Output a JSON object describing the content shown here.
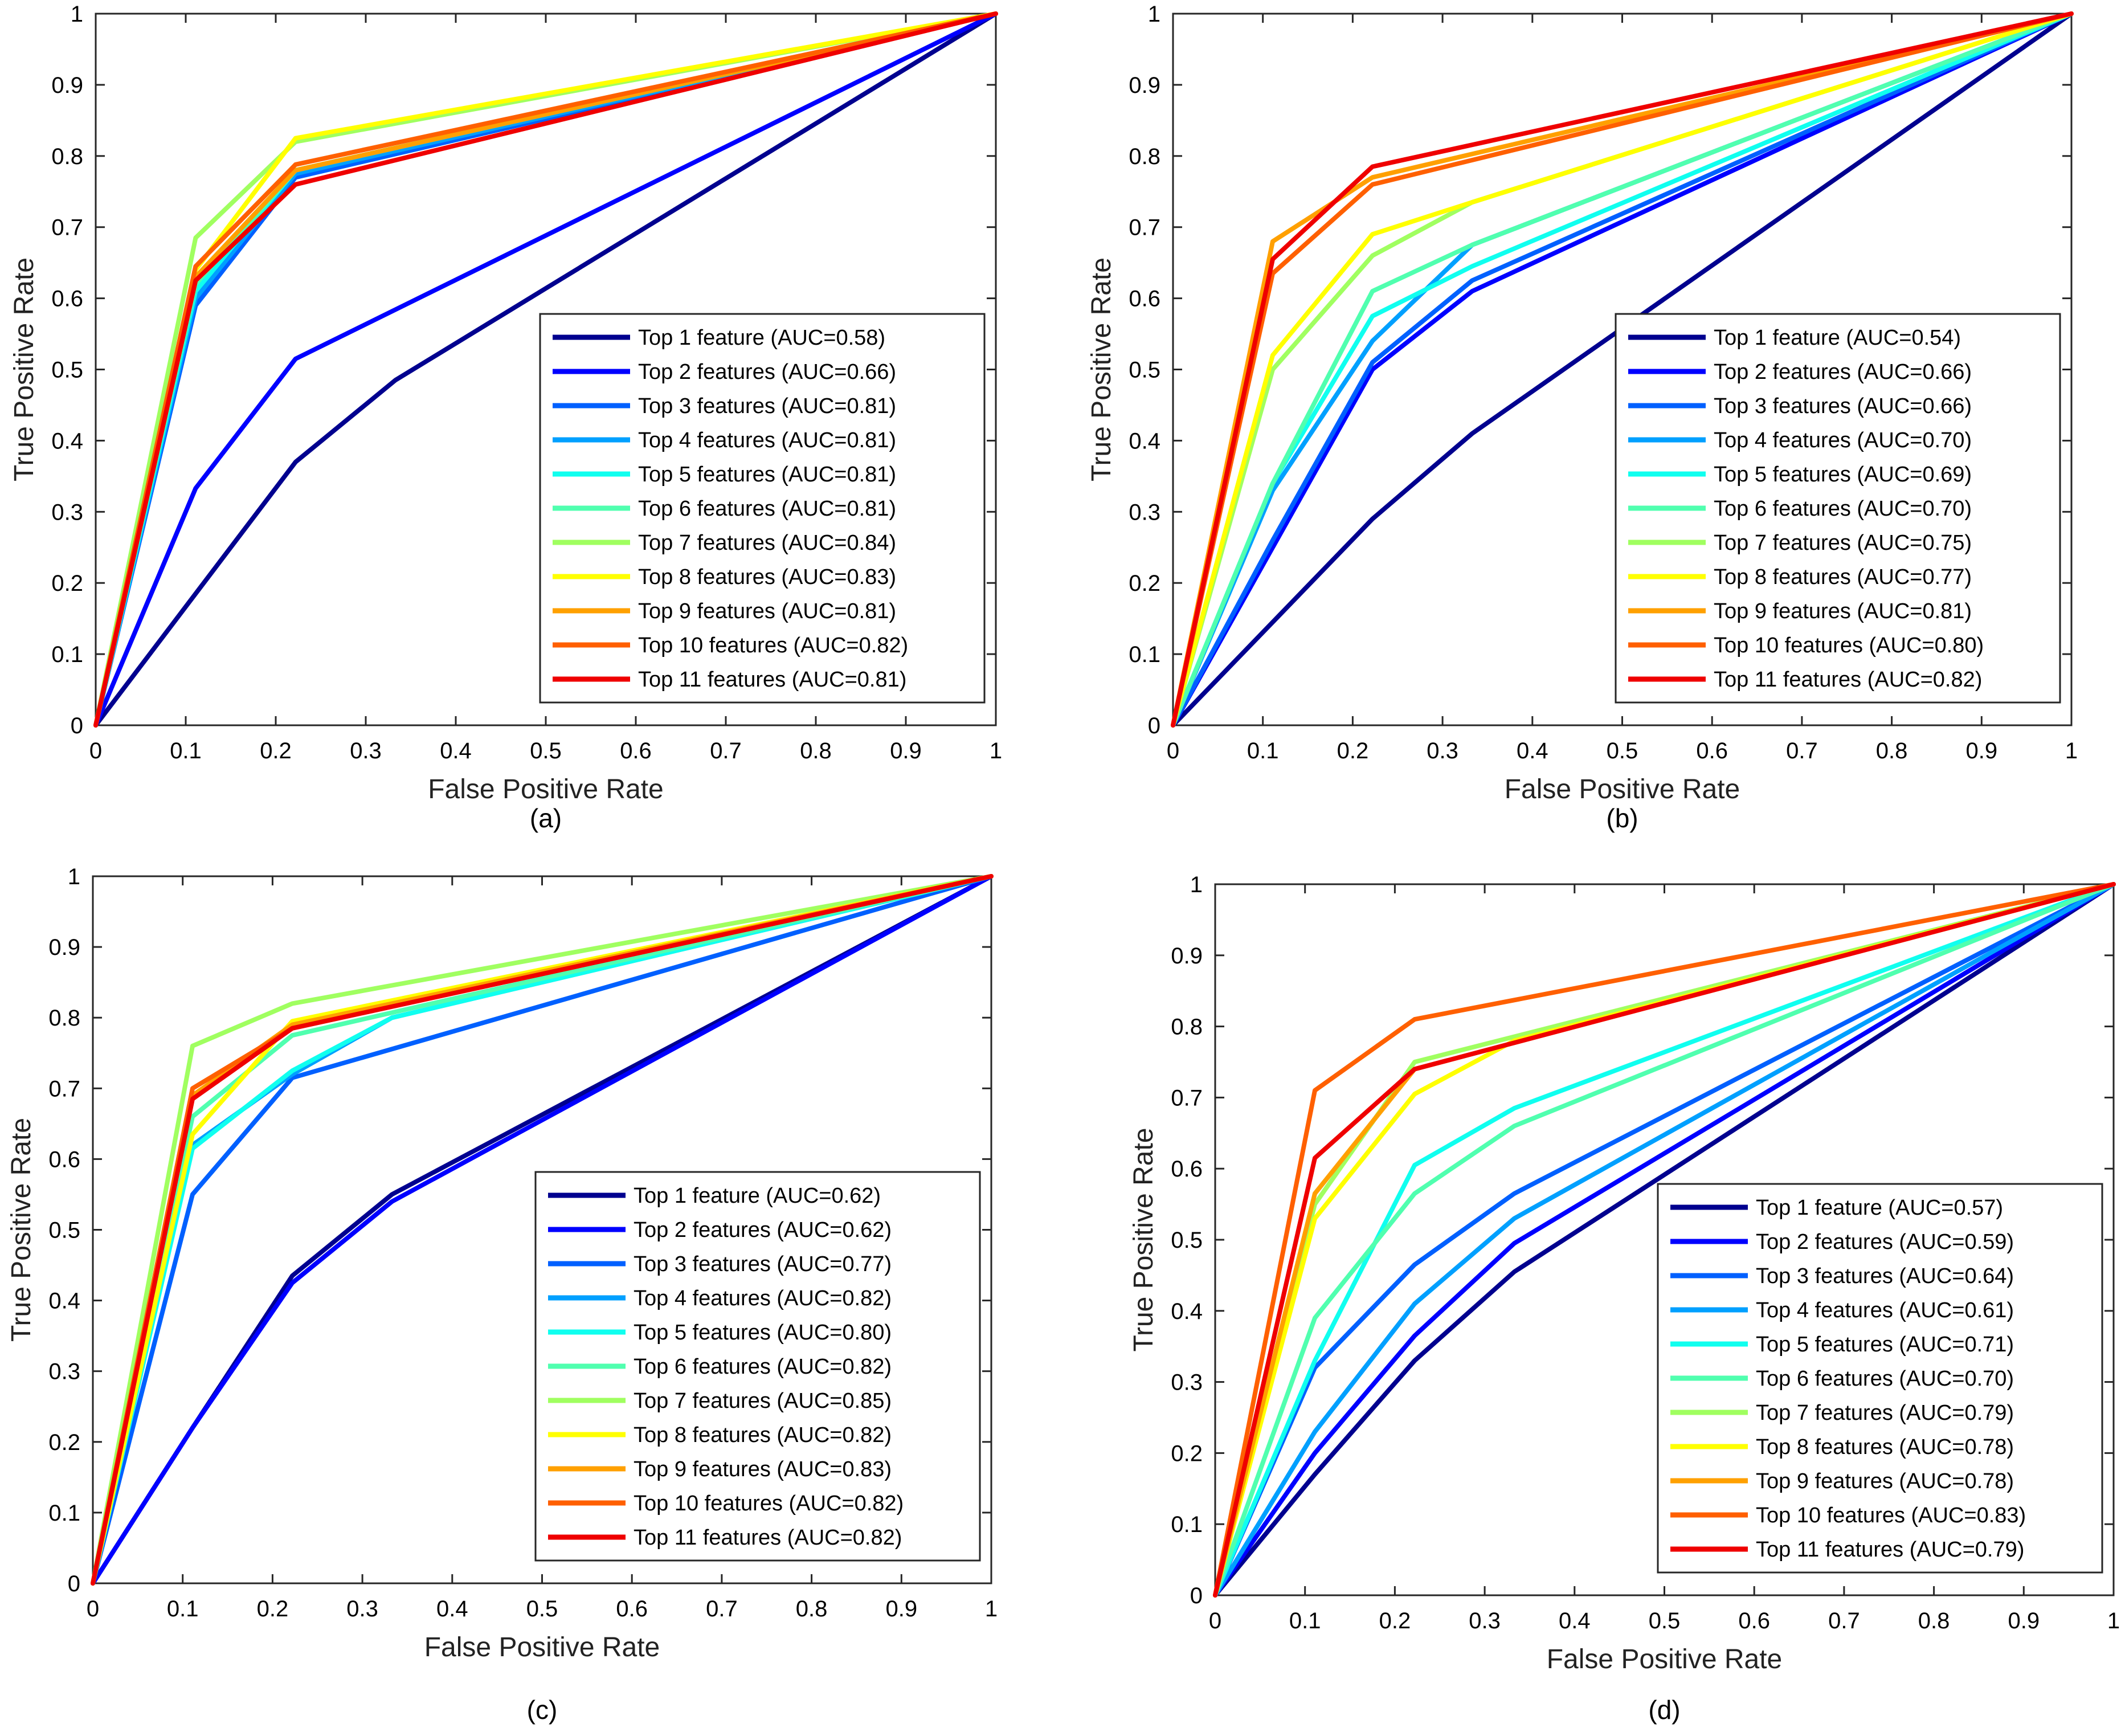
{
  "chart_data": [
    {
      "type": "line",
      "panel_label": "(a)",
      "xlabel": "False Positive Rate",
      "ylabel": "True Positive Rate",
      "xlim": [
        0,
        1
      ],
      "ylim": [
        0,
        1
      ],
      "xticks": [
        "0",
        "0.1",
        "0.2",
        "0.3",
        "0.4",
        "0.5",
        "0.6",
        "0.7",
        "0.8",
        "0.9",
        "1"
      ],
      "yticks": [
        "0",
        "0.1",
        "0.2",
        "0.3",
        "0.4",
        "0.5",
        "0.6",
        "0.7",
        "0.8",
        "0.9",
        "1"
      ],
      "legend_position": "lower-right",
      "series": [
        {
          "name": "Top 1 feature (AUC=0.58)",
          "color": "#00008f",
          "x": [
            0,
            0.222,
            0.333,
            1
          ],
          "y": [
            0,
            0.37,
            0.485,
            1
          ]
        },
        {
          "name": "Top 2 features (AUC=0.66)",
          "color": "#0000ff",
          "x": [
            0,
            0.111,
            0.222,
            1
          ],
          "y": [
            0,
            0.333,
            0.515,
            1
          ]
        },
        {
          "name": "Top 3 features (AUC=0.81)",
          "color": "#0060ff",
          "x": [
            0,
            0.111,
            0.222,
            1
          ],
          "y": [
            0,
            0.59,
            0.77,
            1
          ]
        },
        {
          "name": "Top 4 features (AUC=0.81)",
          "color": "#00a0ff",
          "x": [
            0,
            0.111,
            0.222,
            1
          ],
          "y": [
            0,
            0.6,
            0.775,
            1
          ]
        },
        {
          "name": "Top 5 features (AUC=0.81)",
          "color": "#10ffef",
          "x": [
            0,
            0.111,
            0.222,
            1
          ],
          "y": [
            0,
            0.61,
            0.78,
            1
          ]
        },
        {
          "name": "Top 6 features (AUC=0.81)",
          "color": "#50ffaf",
          "x": [
            0,
            0.111,
            0.222,
            1
          ],
          "y": [
            0,
            0.62,
            0.78,
            1
          ]
        },
        {
          "name": "Top 7 features (AUC=0.84)",
          "color": "#a0ff60",
          "x": [
            0,
            0.111,
            0.222,
            1
          ],
          "y": [
            0,
            0.685,
            0.82,
            1
          ]
        },
        {
          "name": "Top 8 features (AUC=0.83)",
          "color": "#ffff00",
          "x": [
            0,
            0.111,
            0.222,
            1
          ],
          "y": [
            0,
            0.64,
            0.825,
            1
          ]
        },
        {
          "name": "Top 9 features (AUC=0.81)",
          "color": "#ffa000",
          "x": [
            0,
            0.111,
            0.222,
            1
          ],
          "y": [
            0,
            0.63,
            0.78,
            1
          ]
        },
        {
          "name": "Top 10 features (AUC=0.82)",
          "color": "#ff6000",
          "x": [
            0,
            0.111,
            0.222,
            1
          ],
          "y": [
            0,
            0.645,
            0.788,
            1
          ]
        },
        {
          "name": "Top 11 features (AUC=0.81)",
          "color": "#ef0000",
          "x": [
            0,
            0.111,
            0.222,
            1
          ],
          "y": [
            0,
            0.625,
            0.76,
            1
          ]
        }
      ]
    },
    {
      "type": "line",
      "panel_label": "(b)",
      "xlabel": "False Positive Rate",
      "ylabel": "True Positive Rate",
      "xlim": [
        0,
        1
      ],
      "ylim": [
        0,
        1
      ],
      "xticks": [
        "0",
        "0.1",
        "0.2",
        "0.3",
        "0.4",
        "0.5",
        "0.6",
        "0.7",
        "0.8",
        "0.9",
        "1"
      ],
      "yticks": [
        "0",
        "0.1",
        "0.2",
        "0.3",
        "0.4",
        "0.5",
        "0.6",
        "0.7",
        "0.8",
        "0.9",
        "1"
      ],
      "legend_position": "lower-right",
      "series": [
        {
          "name": "Top 1 feature (AUC=0.54)",
          "color": "#00008f",
          "x": [
            0,
            0.222,
            0.333,
            1
          ],
          "y": [
            0,
            0.29,
            0.41,
            1
          ]
        },
        {
          "name": "Top 2 features (AUC=0.66)",
          "color": "#0000ff",
          "x": [
            0,
            0.111,
            0.222,
            0.333,
            1
          ],
          "y": [
            0,
            0.25,
            0.5,
            0.61,
            1
          ]
        },
        {
          "name": "Top 3 features (AUC=0.66)",
          "color": "#0060ff",
          "x": [
            0,
            0.111,
            0.222,
            0.333,
            1
          ],
          "y": [
            0,
            0.26,
            0.51,
            0.625,
            1
          ]
        },
        {
          "name": "Top 4 features (AUC=0.70)",
          "color": "#00a0ff",
          "x": [
            0,
            0.111,
            0.222,
            0.333,
            1
          ],
          "y": [
            0,
            0.33,
            0.54,
            0.675,
            1
          ]
        },
        {
          "name": "Top 5 features (AUC=0.69)",
          "color": "#10ffef",
          "x": [
            0,
            0.111,
            0.222,
            0.333,
            1
          ],
          "y": [
            0,
            0.34,
            0.575,
            0.645,
            1
          ]
        },
        {
          "name": "Top 6 features (AUC=0.70)",
          "color": "#50ffaf",
          "x": [
            0,
            0.111,
            0.222,
            0.333,
            1
          ],
          "y": [
            0,
            0.34,
            0.61,
            0.675,
            1
          ]
        },
        {
          "name": "Top 7 features (AUC=0.75)",
          "color": "#a0ff60",
          "x": [
            0,
            0.111,
            0.222,
            0.333,
            1
          ],
          "y": [
            0,
            0.5,
            0.66,
            0.735,
            1
          ]
        },
        {
          "name": "Top 8 features (AUC=0.77)",
          "color": "#ffff00",
          "x": [
            0,
            0.111,
            0.222,
            0.333,
            1
          ],
          "y": [
            0,
            0.52,
            0.69,
            0.735,
            1
          ]
        },
        {
          "name": "Top 9 features (AUC=0.81)",
          "color": "#ffa000",
          "x": [
            0,
            0.111,
            0.222,
            1
          ],
          "y": [
            0,
            0.68,
            0.77,
            1
          ]
        },
        {
          "name": "Top 10 features (AUC=0.80)",
          "color": "#ff6000",
          "x": [
            0,
            0.111,
            0.222,
            1
          ],
          "y": [
            0,
            0.635,
            0.76,
            1
          ]
        },
        {
          "name": "Top 11 features (AUC=0.82)",
          "color": "#ef0000",
          "x": [
            0,
            0.111,
            0.222,
            1
          ],
          "y": [
            0,
            0.655,
            0.785,
            1
          ]
        }
      ]
    },
    {
      "type": "line",
      "panel_label": "(c)",
      "xlabel": "False Positive Rate",
      "ylabel": "True Positive Rate",
      "xlim": [
        0,
        1
      ],
      "ylim": [
        0,
        1
      ],
      "xticks": [
        "0",
        "0.1",
        "0.2",
        "0.3",
        "0.4",
        "0.5",
        "0.6",
        "0.7",
        "0.8",
        "0.9",
        "1"
      ],
      "yticks": [
        "0",
        "0.1",
        "0.2",
        "0.3",
        "0.4",
        "0.5",
        "0.6",
        "0.7",
        "0.8",
        "0.9",
        "1"
      ],
      "legend_position": "lower-right",
      "series": [
        {
          "name": "Top 1 feature (AUC=0.62)",
          "color": "#00008f",
          "x": [
            0,
            0.111,
            0.222,
            0.333,
            1
          ],
          "y": [
            0,
            0.22,
            0.435,
            0.55,
            1
          ]
        },
        {
          "name": "Top 2 features (AUC=0.62)",
          "color": "#0000ff",
          "x": [
            0,
            0.111,
            0.222,
            0.333,
            1
          ],
          "y": [
            0,
            0.22,
            0.425,
            0.54,
            1
          ]
        },
        {
          "name": "Top 3 features (AUC=0.77)",
          "color": "#0060ff",
          "x": [
            0,
            0.111,
            0.222,
            1
          ],
          "y": [
            0,
            0.55,
            0.715,
            1
          ]
        },
        {
          "name": "Top 4 features (AUC=0.82)",
          "color": "#00a0ff",
          "x": [
            0,
            0.111,
            0.222,
            0.333,
            1
          ],
          "y": [
            0,
            0.62,
            0.72,
            0.8,
            1
          ]
        },
        {
          "name": "Top 5 features (AUC=0.80)",
          "color": "#10ffef",
          "x": [
            0,
            0.111,
            0.222,
            0.333,
            1
          ],
          "y": [
            0,
            0.615,
            0.725,
            0.8,
            1
          ]
        },
        {
          "name": "Top 6 features (AUC=0.82)",
          "color": "#50ffaf",
          "x": [
            0,
            0.111,
            0.222,
            1
          ],
          "y": [
            0,
            0.66,
            0.775,
            1
          ]
        },
        {
          "name": "Top 7 features (AUC=0.85)",
          "color": "#a0ff60",
          "x": [
            0,
            0.111,
            0.222,
            1
          ],
          "y": [
            0,
            0.76,
            0.82,
            1
          ]
        },
        {
          "name": "Top 8 features (AUC=0.82)",
          "color": "#ffff00",
          "x": [
            0,
            0.111,
            0.222,
            1
          ],
          "y": [
            0,
            0.635,
            0.795,
            1
          ]
        },
        {
          "name": "Top 9 features (AUC=0.83)",
          "color": "#ffa000",
          "x": [
            0,
            0.111,
            0.222,
            1
          ],
          "y": [
            0,
            0.69,
            0.79,
            1
          ]
        },
        {
          "name": "Top 10 features (AUC=0.82)",
          "color": "#ff6000",
          "x": [
            0,
            0.111,
            0.222,
            1
          ],
          "y": [
            0,
            0.7,
            0.785,
            1
          ]
        },
        {
          "name": "Top 11 features (AUC=0.82)",
          "color": "#ef0000",
          "x": [
            0,
            0.111,
            0.222,
            1
          ],
          "y": [
            0,
            0.685,
            0.785,
            1
          ]
        }
      ]
    },
    {
      "type": "line",
      "panel_label": "(d)",
      "xlabel": "False Positive Rate",
      "ylabel": "True Positive Rate",
      "xlim": [
        0,
        1
      ],
      "ylim": [
        0,
        1
      ],
      "xticks": [
        "0",
        "0.1",
        "0.2",
        "0.3",
        "0.4",
        "0.5",
        "0.6",
        "0.7",
        "0.8",
        "0.9",
        "1"
      ],
      "yticks": [
        "0",
        "0.1",
        "0.2",
        "0.3",
        "0.4",
        "0.5",
        "0.6",
        "0.7",
        "0.8",
        "0.9",
        "1"
      ],
      "legend_position": "lower-right",
      "series": [
        {
          "name": "Top 1 feature (AUC=0.57)",
          "color": "#00008f",
          "x": [
            0,
            0.111,
            0.222,
            0.333,
            1
          ],
          "y": [
            0,
            0.17,
            0.33,
            0.455,
            1
          ]
        },
        {
          "name": "Top 2 features (AUC=0.59)",
          "color": "#0000ff",
          "x": [
            0,
            0.111,
            0.222,
            0.333,
            1
          ],
          "y": [
            0,
            0.2,
            0.365,
            0.495,
            1
          ]
        },
        {
          "name": "Top 3 features (AUC=0.64)",
          "color": "#0060ff",
          "x": [
            0,
            0.111,
            0.222,
            0.333,
            1
          ],
          "y": [
            0,
            0.32,
            0.465,
            0.565,
            1
          ]
        },
        {
          "name": "Top 4 features (AUC=0.61)",
          "color": "#00a0ff",
          "x": [
            0,
            0.111,
            0.222,
            0.333,
            1
          ],
          "y": [
            0,
            0.23,
            0.41,
            0.53,
            1
          ]
        },
        {
          "name": "Top 5 features (AUC=0.71)",
          "color": "#10ffef",
          "x": [
            0,
            0.111,
            0.222,
            0.333,
            1
          ],
          "y": [
            0,
            0.33,
            0.605,
            0.685,
            1
          ]
        },
        {
          "name": "Top 6 features (AUC=0.70)",
          "color": "#50ffaf",
          "x": [
            0,
            0.111,
            0.222,
            0.333,
            1
          ],
          "y": [
            0,
            0.39,
            0.565,
            0.66,
            1
          ]
        },
        {
          "name": "Top 7 features (AUC=0.79)",
          "color": "#a0ff60",
          "x": [
            0,
            0.111,
            0.222,
            1
          ],
          "y": [
            0,
            0.55,
            0.75,
            1
          ]
        },
        {
          "name": "Top 8 features (AUC=0.78)",
          "color": "#ffff00",
          "x": [
            0,
            0.111,
            0.222,
            0.333,
            1
          ],
          "y": [
            0,
            0.53,
            0.705,
            0.78,
            1
          ]
        },
        {
          "name": "Top 9 features (AUC=0.78)",
          "color": "#ffa000",
          "x": [
            0,
            0.111,
            0.222,
            1
          ],
          "y": [
            0,
            0.565,
            0.74,
            1
          ]
        },
        {
          "name": "Top 10 features (AUC=0.83)",
          "color": "#ff6000",
          "x": [
            0,
            0.111,
            0.222,
            1
          ],
          "y": [
            0,
            0.71,
            0.81,
            1
          ]
        },
        {
          "name": "Top 11 features (AUC=0.79)",
          "color": "#ef0000",
          "x": [
            0,
            0.111,
            0.222,
            1
          ],
          "y": [
            0,
            0.615,
            0.74,
            1
          ]
        }
      ]
    }
  ]
}
